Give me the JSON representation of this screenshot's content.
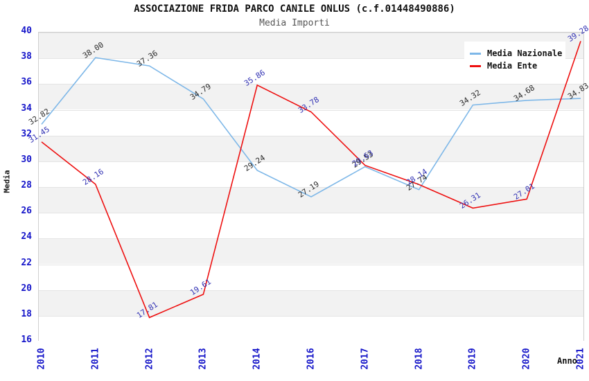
{
  "title": "ASSOCIAZIONE FRIDA PARCO CANILE ONLUS (c.f.01448490886)",
  "subtitle": "Media Importi",
  "chart_data": {
    "type": "line",
    "title": "ASSOCIAZIONE FRIDA PARCO CANILE ONLUS (c.f.01448490886)",
    "subtitle": "Media Importi",
    "xlabel": "Anno",
    "ylabel": "Media",
    "categories": [
      "2010",
      "2011",
      "2012",
      "2013",
      "2014",
      "2016",
      "2017",
      "2018",
      "2019",
      "2020",
      "2021"
    ],
    "series": [
      {
        "name": "Media Nazionale",
        "color": "#7db7e8",
        "label_color": "#2b2b2b",
        "values": [
          32.82,
          38.0,
          37.36,
          34.79,
          29.24,
          27.19,
          29.53,
          27.74,
          34.32,
          34.68,
          34.83
        ]
      },
      {
        "name": "Media Ente",
        "color": "#ee0f0f",
        "label_color": "#3232b4",
        "values": [
          31.45,
          28.16,
          17.81,
          19.61,
          35.86,
          33.78,
          29.63,
          28.14,
          26.31,
          27.01,
          39.28
        ]
      }
    ],
    "ylim": [
      16,
      40
    ],
    "ytick_step": 2,
    "tick_color": "#1515c9",
    "band_colors": [
      "#f2f2f2",
      "#ffffff"
    ],
    "grid": "horizontal-bands",
    "legend_position": "top-right",
    "legend_entries": [
      "Media Nazionale",
      "Media Ente"
    ]
  }
}
